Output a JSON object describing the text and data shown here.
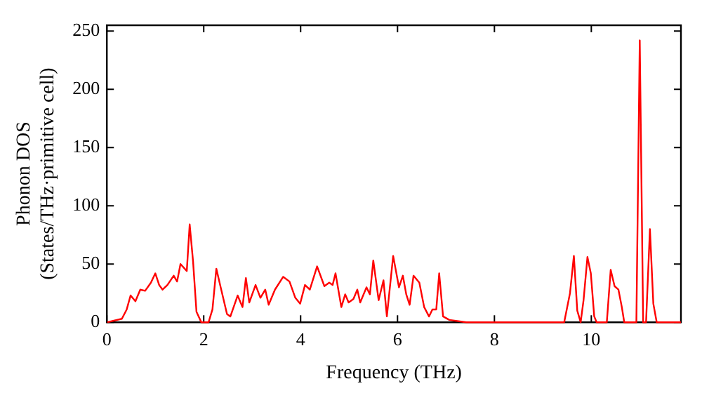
{
  "chart_data": {
    "type": "line",
    "xlabel": "Frequency (THz)",
    "ylabel": "Phonon DOS\n(States/THz·primitive cell)",
    "xlim": [
      0,
      11.85
    ],
    "xticks": [
      0,
      2,
      4,
      6,
      8,
      10
    ],
    "ylim": [
      0,
      255
    ],
    "yticks": [
      0,
      50,
      100,
      150,
      200,
      250
    ],
    "grid": false,
    "legend": false,
    "marker": "none",
    "line_style": "solid",
    "series": [
      {
        "color": "#ff0000",
        "x": [
          0.01,
          0.31,
          0.41,
          0.49,
          0.59,
          0.69,
          0.79,
          0.91,
          1.0,
          1.08,
          1.15,
          1.25,
          1.38,
          1.45,
          1.52,
          1.65,
          1.71,
          1.78,
          1.85,
          1.95,
          2.1,
          2.18,
          2.26,
          2.35,
          2.48,
          2.55,
          2.7,
          2.8,
          2.87,
          2.94,
          3.07,
          3.17,
          3.27,
          3.34,
          3.47,
          3.64,
          3.77,
          3.89,
          3.99,
          4.09,
          4.19,
          4.34,
          4.49,
          4.59,
          4.66,
          4.72,
          4.84,
          4.92,
          4.99,
          5.09,
          5.17,
          5.23,
          5.36,
          5.43,
          5.5,
          5.61,
          5.71,
          5.78,
          5.91,
          6.03,
          6.11,
          6.18,
          6.25,
          6.33,
          6.45,
          6.55,
          6.65,
          6.72,
          6.8,
          6.86,
          6.94,
          7.07,
          7.42,
          8.12,
          9.44,
          9.56,
          9.64,
          9.71,
          9.78,
          9.84,
          9.92,
          9.99,
          10.06,
          10.11,
          10.32,
          10.4,
          10.48,
          10.56,
          10.63,
          10.68,
          10.93,
          11.0,
          11.07,
          11.13,
          11.21,
          11.28,
          11.35,
          11.85
        ],
        "values": [
          0,
          3,
          11,
          23,
          18,
          28,
          27,
          34,
          42,
          32,
          28,
          32,
          40,
          35,
          50,
          44,
          84,
          52,
          9,
          0,
          0,
          11,
          46,
          30,
          7,
          5,
          23,
          13,
          38,
          17,
          32,
          21,
          28,
          15,
          28,
          39,
          35,
          21,
          16,
          32,
          28,
          48,
          31,
          34,
          32,
          42,
          13,
          24,
          17,
          20,
          28,
          17,
          30,
          24,
          53,
          19,
          36,
          5,
          57,
          30,
          40,
          24,
          15,
          40,
          34,
          13,
          5,
          11,
          11,
          42,
          5,
          2,
          0,
          0,
          0,
          25,
          57,
          10,
          0,
          19,
          56,
          42,
          5,
          0,
          0,
          45,
          31,
          28,
          13,
          0,
          0,
          242,
          0,
          0,
          80,
          16,
          0,
          0
        ]
      }
    ]
  }
}
